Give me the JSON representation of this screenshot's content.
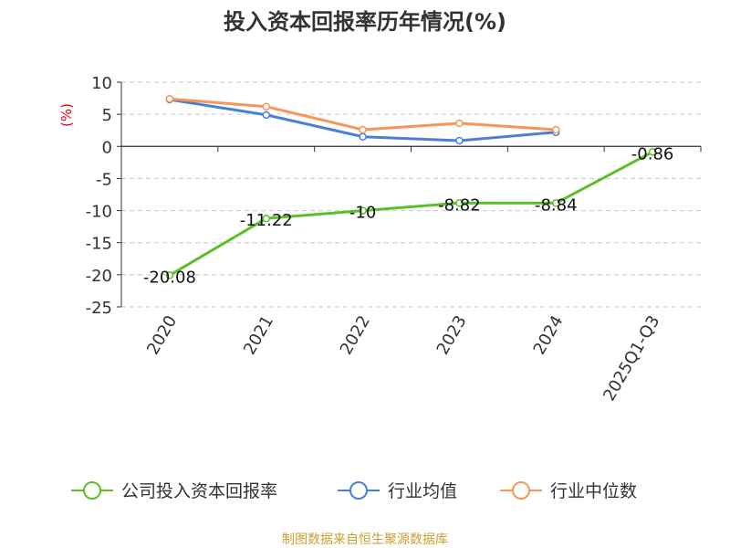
{
  "chart_data": {
    "type": "line",
    "title": "投入资本回报率历年情况(%)",
    "ylabel": "(%)",
    "xlabel": "",
    "ylim": [
      -25,
      10
    ],
    "yticks": [
      10,
      5,
      0,
      -5,
      -10,
      -15,
      -20,
      -25
    ],
    "grid": true,
    "legend_position": "bottom",
    "categories": [
      "2020",
      "2021",
      "2022",
      "2023",
      "2024",
      "2025Q1-Q3"
    ],
    "series": [
      {
        "name": "公司投入资本回报率",
        "color": "#5cbf2a",
        "values": [
          -20.08,
          -11.22,
          -10,
          -8.82,
          -8.84,
          -0.86
        ],
        "show_labels": true
      },
      {
        "name": "行业均值",
        "color": "#4a7fd8",
        "values": [
          7.3,
          4.9,
          1.5,
          0.9,
          2.2,
          null
        ],
        "show_labels": false
      },
      {
        "name": "行业中位数",
        "color": "#f7955a",
        "values": [
          7.4,
          6.2,
          2.6,
          3.6,
          2.6,
          null
        ],
        "show_labels": false
      }
    ],
    "data_labels": [
      "-20.08",
      "-11.22",
      "-10",
      "-8.82",
      "-8.84",
      "-0.86"
    ]
  },
  "source_text": "制图数据来自恒生聚源数据库"
}
